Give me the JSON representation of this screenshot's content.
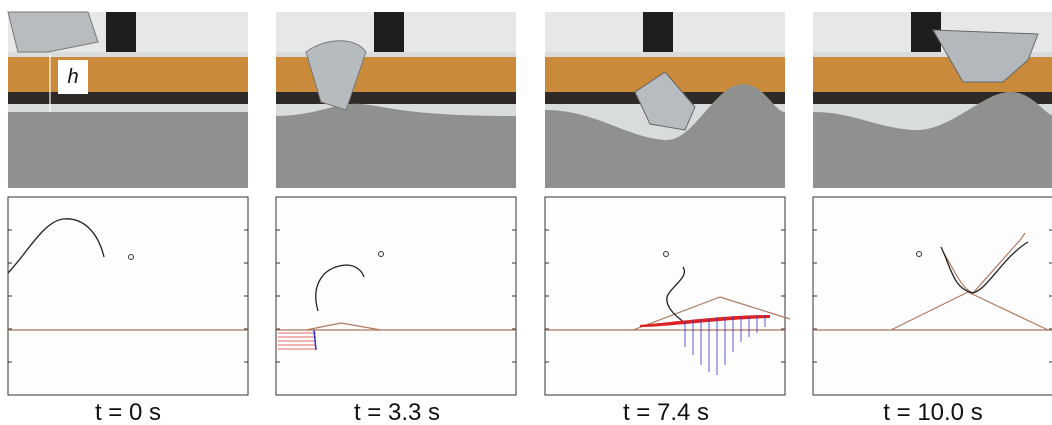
{
  "annotation": "h",
  "panels": [
    {
      "caption": "t = 0 s"
    },
    {
      "caption": "t = 3.3 s"
    },
    {
      "caption": "t = 7.4 s"
    },
    {
      "caption": "t = 10.0 s"
    }
  ]
}
